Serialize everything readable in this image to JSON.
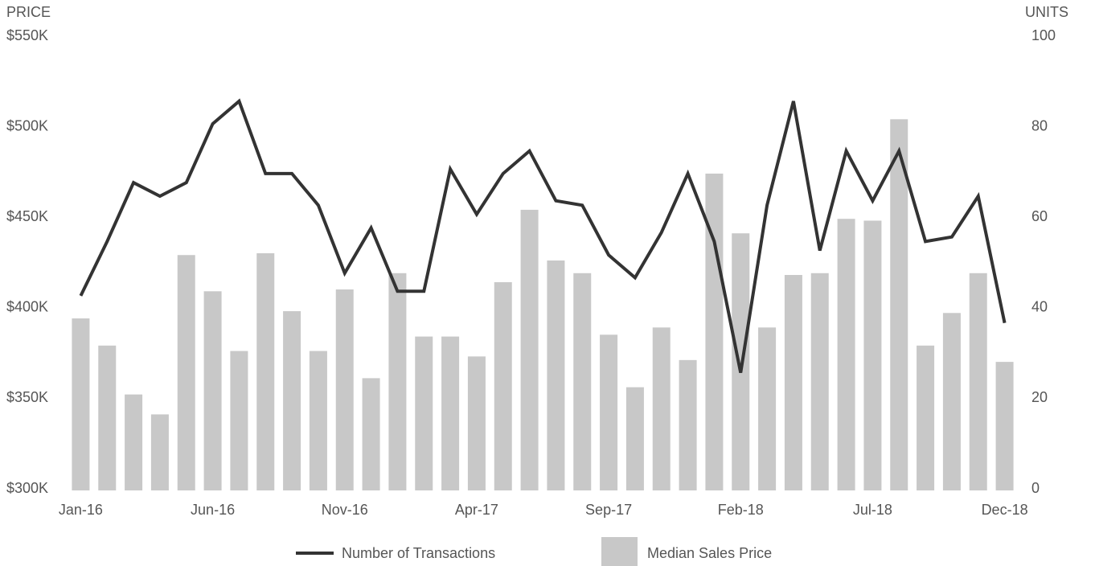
{
  "chart_data": {
    "type": "bar",
    "y_label": "PRICE",
    "y2_label": "UNITS",
    "categories": [
      "Jan-16",
      null,
      null,
      null,
      null,
      "Jun-16",
      null,
      null,
      null,
      null,
      "Nov-16",
      null,
      null,
      null,
      null,
      "Apr-17",
      null,
      null,
      null,
      null,
      "Sep-17",
      null,
      null,
      null,
      null,
      "Feb-18",
      null,
      null,
      null,
      null,
      "Jul-18",
      null,
      null,
      null,
      null,
      "Dec-18"
    ],
    "series": [
      {
        "name": "Number of Transactions",
        "type": "line",
        "axis": "y2",
        "color": "#333333",
        "values": [
          43,
          55,
          68,
          65,
          68,
          81,
          86,
          70,
          70,
          63,
          48,
          58,
          44,
          44,
          71,
          61,
          70,
          75,
          64,
          63,
          52,
          47,
          57,
          70,
          55,
          26,
          63,
          86,
          53,
          75,
          64,
          75,
          55,
          56,
          65,
          37
        ]
      },
      {
        "name": "Median Sales Price",
        "type": "bar",
        "color": "#c8c8c8",
        "values": [
          395000,
          380000,
          353000,
          342000,
          430000,
          410000,
          377000,
          431000,
          399000,
          377000,
          411000,
          362000,
          420000,
          385000,
          385000,
          374000,
          415000,
          455000,
          427000,
          420000,
          386000,
          357000,
          390000,
          372000,
          475000,
          442000,
          390000,
          419000,
          420000,
          450000,
          449000,
          505000,
          380000,
          398000,
          420000,
          371000
        ]
      }
    ],
    "ylim": [
      300000,
      550000
    ],
    "yticks": [
      {
        "value": 300000,
        "label": "$300K"
      },
      {
        "value": 350000,
        "label": "$350K"
      },
      {
        "value": 400000,
        "label": "$400K"
      },
      {
        "value": 450000,
        "label": "$450K"
      },
      {
        "value": 500000,
        "label": "$500K"
      },
      {
        "value": 550000,
        "label": "$550K"
      }
    ],
    "y2lim": [
      0,
      100
    ],
    "y2ticks": [
      0,
      20,
      40,
      60,
      80,
      100
    ],
    "legend": "bottom"
  }
}
